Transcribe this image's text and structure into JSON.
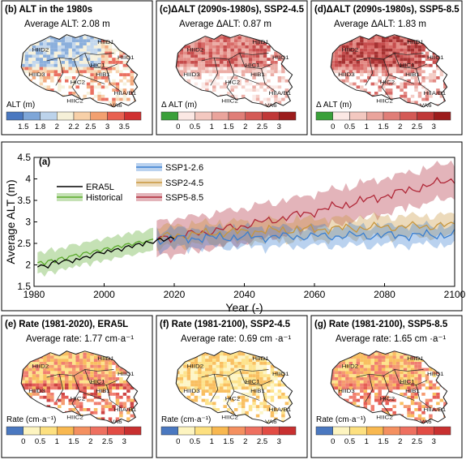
{
  "maps": [
    {
      "id": "b",
      "title": "(b) ALT in the 1980s",
      "avg": "Average ALT: 2.08 m",
      "unit": "ALT (m)",
      "ticks": [
        "1.5",
        "1.8",
        "2",
        "2.2",
        "2.5",
        "3",
        "3.5"
      ],
      "colors": [
        "#4a78c0",
        "#7ea6d8",
        "#bcd3eb",
        "#f5f0d8",
        "#f7d0a8",
        "#f2a070",
        "#e86050",
        "#d03030"
      ]
    },
    {
      "id": "c",
      "title": "(c)ΔALT (2090s-1980s), SSP2-4.5",
      "avg": "Average ΔALT: 0.87 m",
      "unit": "Δ ALT (m)",
      "ticks": [
        "0",
        "0.5",
        "1",
        "1.5",
        "2",
        "2.5",
        "3"
      ],
      "colors": [
        "#3aa03a",
        "#fbe8e4",
        "#f3c8c0",
        "#eaa49c",
        "#e07e78",
        "#d45a56",
        "#c03838",
        "#9c1c1c"
      ]
    },
    {
      "id": "d",
      "title": "(d)ΔALT (2090s-1980s), SSP5-8.5",
      "avg": "Average ΔALT: 1.83 m",
      "unit": "Δ ALT (m)",
      "ticks": [
        "0",
        "0.5",
        "1",
        "1.5",
        "2",
        "2.5",
        "3"
      ],
      "colors": [
        "#3aa03a",
        "#fbe8e4",
        "#f3c8c0",
        "#eaa49c",
        "#e07e78",
        "#d45a56",
        "#c03838",
        "#9c1c1c"
      ]
    },
    {
      "id": "e",
      "title": "(e)  Rate (1981-2020), ERA5L",
      "avg": "Average rate: 1.77 cm·a⁻¹",
      "unit": "Rate (cm·a⁻¹)",
      "ticks": [
        "0",
        "0.5",
        "1",
        "1.5",
        "2",
        "2.5",
        "3"
      ],
      "colors": [
        "#4a78c0",
        "#fdf4c0",
        "#fde080",
        "#f8b850",
        "#f49060",
        "#ee7060",
        "#e24c44",
        "#c83030"
      ]
    },
    {
      "id": "f",
      "title": "(f)  Rate (1981-2100), SSP2-4.5",
      "avg": "Average rate: 0.69 cm ·a⁻¹",
      "unit": "Rate (cm·a⁻¹)",
      "ticks": [
        "0",
        "0.5",
        "1",
        "1.5",
        "2",
        "2.5",
        "3"
      ],
      "colors": [
        "#4a78c0",
        "#fdf4c0",
        "#fde080",
        "#f8b850",
        "#f49060",
        "#ee7060",
        "#e24c44",
        "#c83030"
      ]
    },
    {
      "id": "g",
      "title": "(g)  Rate (1981-2100), SSP5-8.5",
      "avg": "Average rate: 1.65 cm ·a⁻¹",
      "unit": "Rate (cm·a⁻¹)",
      "ticks": [
        "0",
        "0.5",
        "1",
        "1.5",
        "2",
        "2.5",
        "3"
      ],
      "colors": [
        "#4a78c0",
        "#fdf4c0",
        "#fde080",
        "#f8b850",
        "#f49060",
        "#ee7060",
        "#e24c44",
        "#c83030"
      ]
    }
  ],
  "region_labels": [
    "HIID2",
    "HIID3",
    "HIC1",
    "HIID1",
    "HIB1",
    "HIC2",
    "HIIC2",
    "HIIA/B1",
    "VA6",
    "HIIC1",
    "HIID3"
  ],
  "chart_data": {
    "type": "line",
    "panel_label": "(a)",
    "xlabel": "Year (-)",
    "ylabel": "Average ALT (m)",
    "xlim": [
      1980,
      2100
    ],
    "ylim": [
      1.5,
      4.5
    ],
    "xticks": [
      1980,
      2000,
      2020,
      2040,
      2060,
      2080,
      2100
    ],
    "yticks": [
      1.5,
      2,
      2.5,
      3,
      3.5,
      4,
      4.5
    ],
    "legend": [
      {
        "name": "ERA5L",
        "color": "#000000",
        "band": false
      },
      {
        "name": "Historical",
        "color": "#5aaa2a",
        "band": true
      },
      {
        "name": "SSP1-2.6",
        "color": "#3a7fd0",
        "band": true
      },
      {
        "name": "SSP2-4.5",
        "color": "#c8963c",
        "band": true
      },
      {
        "name": "SSP5-8.5",
        "color": "#b02838",
        "band": true
      }
    ],
    "series": [
      {
        "name": "ERA5L",
        "color": "#000000",
        "x_start": 1981,
        "x_end": 2020,
        "values": [
          1.95,
          2.0,
          1.98,
          1.93,
          2.05,
          2.1,
          2.02,
          2.08,
          2.12,
          2.1,
          2.05,
          2.15,
          2.12,
          2.18,
          2.2,
          2.16,
          2.25,
          2.3,
          2.28,
          2.26,
          2.35,
          2.3,
          2.36,
          2.38,
          2.32,
          2.42,
          2.45,
          2.4,
          2.48,
          2.5,
          2.44,
          2.55,
          2.52,
          2.5,
          2.58,
          2.62,
          2.55,
          2.6,
          2.65,
          2.6
        ]
      },
      {
        "name": "Historical",
        "color": "#5aaa2a",
        "x_start": 1981,
        "x_end": 2014,
        "mean": [
          2.05,
          2.08,
          2.0,
          2.1,
          2.12,
          2.05,
          2.15,
          2.18,
          2.1,
          2.2,
          2.22,
          2.25,
          2.18,
          2.28,
          2.3,
          2.25,
          2.32,
          2.35,
          2.3,
          2.38,
          2.4,
          2.35,
          2.42,
          2.45,
          2.4,
          2.48,
          2.5,
          2.45,
          2.52,
          2.55,
          2.5,
          2.55,
          2.58,
          2.6
        ],
        "half_width": 0.23
      },
      {
        "name": "SSP1-2.6",
        "color": "#3a7fd0",
        "x_start": 2015,
        "x_end": 2100,
        "start": 2.58,
        "end": 2.7,
        "half_width": 0.2
      },
      {
        "name": "SSP2-4.5",
        "color": "#c8963c",
        "x_start": 2015,
        "x_end": 2100,
        "start": 2.6,
        "end": 2.92,
        "half_width": 0.22
      },
      {
        "name": "SSP5-8.5",
        "color": "#b02838",
        "x_start": 2015,
        "x_end": 2100,
        "start": 2.62,
        "end": 4.0,
        "half_width": 0.38
      }
    ]
  }
}
